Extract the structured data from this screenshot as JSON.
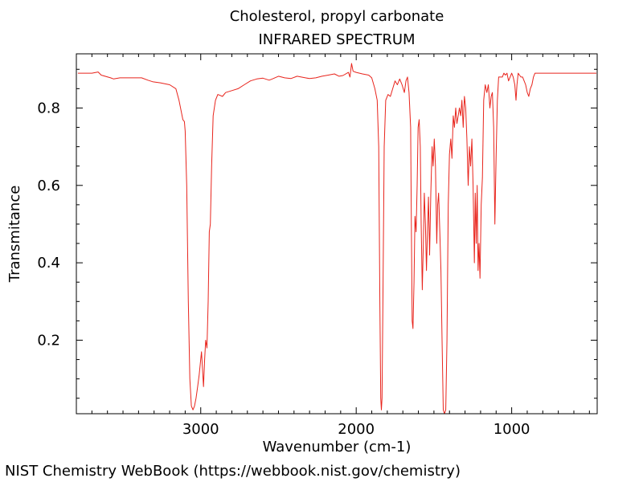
{
  "title": "Cholesterol, propyl carbonate",
  "subtitle": "INFRARED SPECTRUM",
  "footer": "NIST Chemistry WebBook (https://webbook.nist.gov/chemistry)",
  "chart_data": {
    "type": "line",
    "title": "Cholesterol, propyl carbonate",
    "subtitle": "INFRARED SPECTRUM",
    "xlabel": "Wavenumber (cm-1)",
    "ylabel": "Transmitance",
    "xlim": [
      3800,
      450
    ],
    "ylim": [
      0.01,
      0.94
    ],
    "x_reversed": true,
    "grid": false,
    "line_color": "#e8241c",
    "x_ticks": [
      3000,
      2000,
      1000
    ],
    "x_tick_labels": [
      "3000",
      "2000",
      "1000"
    ],
    "y_ticks": [
      0.2,
      0.4,
      0.6,
      0.8
    ],
    "y_tick_labels": [
      "0.2",
      "0.4",
      "0.6",
      "0.8"
    ],
    "series": [
      {
        "points": [
          [
            3790,
            0.89
          ],
          [
            3700,
            0.89
          ],
          [
            3660,
            0.893
          ],
          [
            3640,
            0.885
          ],
          [
            3580,
            0.878
          ],
          [
            3560,
            0.875
          ],
          [
            3520,
            0.878
          ],
          [
            3450,
            0.878
          ],
          [
            3380,
            0.878
          ],
          [
            3340,
            0.872
          ],
          [
            3310,
            0.868
          ],
          [
            3260,
            0.865
          ],
          [
            3200,
            0.86
          ],
          [
            3160,
            0.85
          ],
          [
            3140,
            0.82
          ],
          [
            3125,
            0.79
          ],
          [
            3115,
            0.77
          ],
          [
            3105,
            0.765
          ],
          [
            3100,
            0.74
          ],
          [
            3090,
            0.6
          ],
          [
            3080,
            0.3
          ],
          [
            3070,
            0.1
          ],
          [
            3060,
            0.03
          ],
          [
            3050,
            0.02
          ],
          [
            3040,
            0.03
          ],
          [
            3030,
            0.05
          ],
          [
            3020,
            0.08
          ],
          [
            3010,
            0.11
          ],
          [
            3000,
            0.15
          ],
          [
            2995,
            0.17
          ],
          [
            2988,
            0.12
          ],
          [
            2982,
            0.08
          ],
          [
            2975,
            0.15
          ],
          [
            2968,
            0.2
          ],
          [
            2960,
            0.18
          ],
          [
            2952,
            0.3
          ],
          [
            2945,
            0.48
          ],
          [
            2938,
            0.5
          ],
          [
            2930,
            0.65
          ],
          [
            2920,
            0.78
          ],
          [
            2905,
            0.82
          ],
          [
            2890,
            0.835
          ],
          [
            2860,
            0.83
          ],
          [
            2840,
            0.84
          ],
          [
            2800,
            0.845
          ],
          [
            2760,
            0.85
          ],
          [
            2720,
            0.86
          ],
          [
            2680,
            0.87
          ],
          [
            2640,
            0.875
          ],
          [
            2600,
            0.877
          ],
          [
            2560,
            0.872
          ],
          [
            2540,
            0.875
          ],
          [
            2500,
            0.882
          ],
          [
            2460,
            0.878
          ],
          [
            2420,
            0.876
          ],
          [
            2380,
            0.882
          ],
          [
            2340,
            0.879
          ],
          [
            2300,
            0.876
          ],
          [
            2260,
            0.878
          ],
          [
            2220,
            0.882
          ],
          [
            2180,
            0.885
          ],
          [
            2140,
            0.888
          ],
          [
            2110,
            0.882
          ],
          [
            2085,
            0.884
          ],
          [
            2050,
            0.892
          ],
          [
            2040,
            0.88
          ],
          [
            2030,
            0.915
          ],
          [
            2020,
            0.895
          ],
          [
            2000,
            0.892
          ],
          [
            1960,
            0.888
          ],
          [
            1920,
            0.885
          ],
          [
            1900,
            0.878
          ],
          [
            1880,
            0.85
          ],
          [
            1865,
            0.82
          ],
          [
            1855,
            0.7
          ],
          [
            1848,
            0.3
          ],
          [
            1842,
            0.05
          ],
          [
            1838,
            0.02
          ],
          [
            1834,
            0.05
          ],
          [
            1828,
            0.3
          ],
          [
            1820,
            0.7
          ],
          [
            1810,
            0.82
          ],
          [
            1795,
            0.835
          ],
          [
            1780,
            0.83
          ],
          [
            1765,
            0.85
          ],
          [
            1750,
            0.87
          ],
          [
            1735,
            0.86
          ],
          [
            1720,
            0.875
          ],
          [
            1705,
            0.86
          ],
          [
            1690,
            0.84
          ],
          [
            1680,
            0.87
          ],
          [
            1670,
            0.88
          ],
          [
            1660,
            0.84
          ],
          [
            1650,
            0.75
          ],
          [
            1645,
            0.5
          ],
          [
            1640,
            0.25
          ],
          [
            1635,
            0.23
          ],
          [
            1628,
            0.35
          ],
          [
            1622,
            0.52
          ],
          [
            1615,
            0.48
          ],
          [
            1608,
            0.6
          ],
          [
            1602,
            0.75
          ],
          [
            1595,
            0.77
          ],
          [
            1588,
            0.7
          ],
          [
            1582,
            0.5
          ],
          [
            1575,
            0.33
          ],
          [
            1568,
            0.45
          ],
          [
            1562,
            0.58
          ],
          [
            1555,
            0.5
          ],
          [
            1548,
            0.38
          ],
          [
            1542,
            0.48
          ],
          [
            1535,
            0.57
          ],
          [
            1528,
            0.42
          ],
          [
            1520,
            0.58
          ],
          [
            1512,
            0.7
          ],
          [
            1505,
            0.65
          ],
          [
            1498,
            0.72
          ],
          [
            1490,
            0.65
          ],
          [
            1482,
            0.45
          ],
          [
            1476,
            0.55
          ],
          [
            1470,
            0.58
          ],
          [
            1462,
            0.48
          ],
          [
            1455,
            0.38
          ],
          [
            1448,
            0.2
          ],
          [
            1440,
            0.02
          ],
          [
            1432,
            0.01
          ],
          [
            1424,
            0.02
          ],
          [
            1416,
            0.2
          ],
          [
            1408,
            0.55
          ],
          [
            1400,
            0.68
          ],
          [
            1392,
            0.72
          ],
          [
            1384,
            0.67
          ],
          [
            1376,
            0.78
          ],
          [
            1368,
            0.75
          ],
          [
            1360,
            0.8
          ],
          [
            1352,
            0.76
          ],
          [
            1344,
            0.78
          ],
          [
            1336,
            0.8
          ],
          [
            1328,
            0.78
          ],
          [
            1320,
            0.82
          ],
          [
            1312,
            0.75
          ],
          [
            1304,
            0.83
          ],
          [
            1296,
            0.8
          ],
          [
            1288,
            0.72
          ],
          [
            1280,
            0.6
          ],
          [
            1272,
            0.7
          ],
          [
            1264,
            0.65
          ],
          [
            1256,
            0.72
          ],
          [
            1248,
            0.6
          ],
          [
            1240,
            0.4
          ],
          [
            1234,
            0.58
          ],
          [
            1228,
            0.45
          ],
          [
            1222,
            0.6
          ],
          [
            1216,
            0.38
          ],
          [
            1210,
            0.45
          ],
          [
            1204,
            0.36
          ],
          [
            1196,
            0.55
          ],
          [
            1188,
            0.62
          ],
          [
            1180,
            0.82
          ],
          [
            1170,
            0.86
          ],
          [
            1160,
            0.84
          ],
          [
            1150,
            0.86
          ],
          [
            1140,
            0.8
          ],
          [
            1132,
            0.83
          ],
          [
            1124,
            0.84
          ],
          [
            1116,
            0.75
          ],
          [
            1108,
            0.5
          ],
          [
            1100,
            0.68
          ],
          [
            1092,
            0.82
          ],
          [
            1084,
            0.88
          ],
          [
            1070,
            0.88
          ],
          [
            1060,
            0.88
          ],
          [
            1050,
            0.89
          ],
          [
            1040,
            0.885
          ],
          [
            1030,
            0.89
          ],
          [
            1020,
            0.87
          ],
          [
            1010,
            0.88
          ],
          [
            1000,
            0.89
          ],
          [
            990,
            0.88
          ],
          [
            980,
            0.86
          ],
          [
            972,
            0.82
          ],
          [
            966,
            0.86
          ],
          [
            958,
            0.89
          ],
          [
            950,
            0.885
          ],
          [
            940,
            0.88
          ],
          [
            930,
            0.88
          ],
          [
            920,
            0.87
          ],
          [
            910,
            0.86
          ],
          [
            900,
            0.84
          ],
          [
            890,
            0.83
          ],
          [
            880,
            0.85
          ],
          [
            870,
            0.86
          ],
          [
            860,
            0.88
          ],
          [
            850,
            0.89
          ],
          [
            820,
            0.89
          ],
          [
            790,
            0.89
          ],
          [
            760,
            0.89
          ],
          [
            730,
            0.89
          ],
          [
            700,
            0.89
          ],
          [
            670,
            0.89
          ],
          [
            640,
            0.89
          ],
          [
            610,
            0.89
          ],
          [
            580,
            0.89
          ],
          [
            550,
            0.89
          ],
          [
            520,
            0.89
          ],
          [
            490,
            0.89
          ],
          [
            455,
            0.89
          ]
        ]
      }
    ]
  }
}
